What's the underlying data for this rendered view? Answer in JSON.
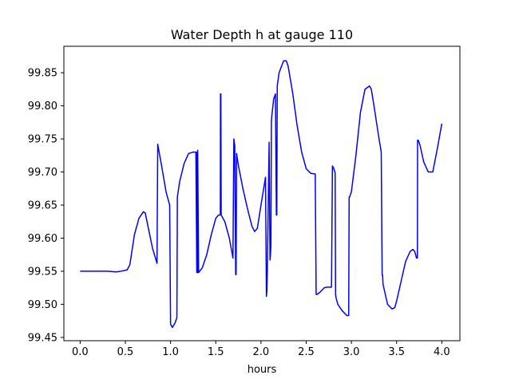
{
  "chart_data": {
    "type": "line",
    "title": "Water Depth h at gauge 110",
    "xlabel": "hours",
    "ylabel": "",
    "xlim": [
      -0.18,
      4.2
    ],
    "ylim": [
      99.445,
      99.89
    ],
    "xticks": [
      0.0,
      0.5,
      1.0,
      1.5,
      2.0,
      2.5,
      3.0,
      3.5,
      4.0
    ],
    "xtick_labels": [
      "0.0",
      "0.5",
      "1.0",
      "1.5",
      "2.0",
      "2.5",
      "3.0",
      "3.5",
      "4.0"
    ],
    "yticks": [
      99.45,
      99.5,
      99.55,
      99.6,
      99.65,
      99.7,
      99.75,
      99.8,
      99.85
    ],
    "ytick_labels": [
      "99.45",
      "99.50",
      "99.55",
      "99.60",
      "99.65",
      "99.70",
      "99.75",
      "99.80",
      "99.85"
    ],
    "grid": false,
    "series": [
      {
        "color": "#0000ff",
        "x": [
          0.0,
          0.1,
          0.2,
          0.3,
          0.4,
          0.45,
          0.52,
          0.55,
          0.6,
          0.65,
          0.7,
          0.72,
          0.75,
          0.8,
          0.85,
          0.858,
          0.9,
          0.95,
          0.99,
          1.0,
          1.02,
          1.05,
          1.07,
          1.075,
          1.1,
          1.15,
          1.2,
          1.25,
          1.28,
          1.29,
          1.293,
          1.297,
          1.3,
          1.31,
          1.35,
          1.4,
          1.45,
          1.5,
          1.53,
          1.55,
          1.552,
          1.556,
          1.56,
          1.6,
          1.65,
          1.69,
          1.7,
          1.71,
          1.72,
          1.725,
          1.73,
          1.75,
          1.8,
          1.85,
          1.9,
          1.93,
          1.96,
          2.0,
          2.05,
          2.06,
          2.065,
          2.07,
          2.09,
          2.1,
          2.105,
          2.11,
          2.115,
          2.12,
          2.14,
          2.16,
          2.17,
          2.175,
          2.18,
          2.2,
          2.25,
          2.28,
          2.3,
          2.35,
          2.4,
          2.45,
          2.5,
          2.55,
          2.6,
          2.61,
          2.615,
          2.62,
          2.65,
          2.7,
          2.73,
          2.78,
          2.79,
          2.8,
          2.82,
          2.825,
          2.83,
          2.85,
          2.9,
          2.95,
          2.97,
          2.975,
          2.98,
          3.0,
          3.05,
          3.1,
          3.15,
          3.2,
          3.22,
          3.25,
          3.3,
          3.33,
          3.34,
          3.345,
          3.35,
          3.4,
          3.45,
          3.48,
          3.5,
          3.55,
          3.6,
          3.65,
          3.68,
          3.7,
          3.72,
          3.73,
          3.732,
          3.74,
          3.76,
          3.8,
          3.85,
          3.9,
          3.95,
          4.0
        ],
        "y": [
          99.55,
          99.55,
          99.55,
          99.55,
          99.549,
          99.55,
          99.552,
          99.56,
          99.605,
          99.63,
          99.64,
          99.638,
          99.618,
          99.585,
          99.562,
          99.742,
          99.71,
          99.67,
          99.65,
          99.47,
          99.465,
          99.472,
          99.48,
          99.662,
          99.685,
          99.713,
          99.728,
          99.73,
          99.73,
          99.548,
          99.73,
          99.548,
          99.733,
          99.548,
          99.555,
          99.575,
          99.605,
          99.63,
          99.635,
          99.635,
          99.818,
          99.818,
          99.635,
          99.625,
          99.6,
          99.57,
          99.75,
          99.74,
          99.545,
          99.545,
          99.728,
          99.71,
          99.675,
          99.645,
          99.618,
          99.61,
          99.615,
          99.65,
          99.692,
          99.512,
          99.52,
          99.548,
          99.745,
          99.567,
          99.575,
          99.59,
          99.776,
          99.785,
          99.81,
          99.818,
          99.635,
          99.635,
          99.83,
          99.85,
          99.868,
          99.868,
          99.86,
          99.82,
          99.77,
          99.73,
          99.705,
          99.698,
          99.697,
          99.515,
          99.515,
          99.515,
          99.518,
          99.525,
          99.526,
          99.526,
          99.709,
          99.707,
          99.699,
          99.515,
          99.51,
          99.5,
          99.49,
          99.483,
          99.483,
          99.662,
          99.662,
          99.67,
          99.725,
          99.79,
          99.825,
          99.83,
          99.825,
          99.8,
          99.755,
          99.73,
          99.544,
          99.544,
          99.53,
          99.5,
          99.493,
          99.495,
          99.505,
          99.535,
          99.565,
          99.58,
          99.583,
          99.58,
          99.57,
          99.57,
          99.748,
          99.748,
          99.74,
          99.715,
          99.7,
          99.7,
          99.735,
          99.773
        ]
      }
    ]
  }
}
